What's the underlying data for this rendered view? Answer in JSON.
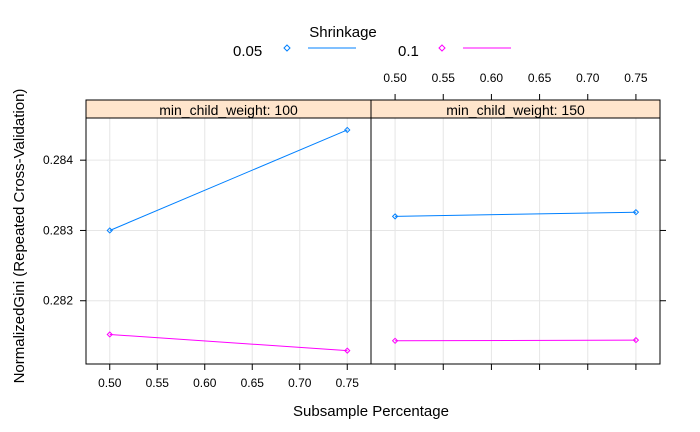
{
  "chart_data": {
    "type": "line",
    "xlabel": "Subsample Percentage",
    "ylabel": "NormalizedGini (Repeated Cross-Validation)",
    "xlim": [
      0.475,
      0.775
    ],
    "ylim": [
      281.1,
      284.6
    ],
    "xticks": [
      0.5,
      0.55,
      0.6,
      0.65,
      0.7,
      0.75
    ],
    "yticks": [
      282,
      283,
      284
    ],
    "ytick_labels": [
      "0.282",
      "0.283",
      "0.284"
    ],
    "value_scale_note": "y values stored x1000 (0.2830 -> 283.0)",
    "legend": {
      "title": "Shrinkage",
      "position": "top",
      "entries": [
        {
          "label": "0.05",
          "color": "#0080ff"
        },
        {
          "label": "0.1",
          "color": "#ff00ff"
        }
      ]
    },
    "panels": [
      {
        "strip": "min_child_weight: 100",
        "series": [
          {
            "name": "0.05",
            "color": "#0080ff",
            "x": [
              0.5,
              0.75
            ],
            "y": [
              283.0,
              284.43
            ]
          },
          {
            "name": "0.1",
            "color": "#ff00ff",
            "x": [
              0.5,
              0.75
            ],
            "y": [
              281.52,
              281.29
            ]
          }
        ]
      },
      {
        "strip": "min_child_weight: 150",
        "series": [
          {
            "name": "0.05",
            "color": "#0080ff",
            "x": [
              0.5,
              0.75
            ],
            "y": [
              283.2,
              283.26
            ]
          },
          {
            "name": "0.1",
            "color": "#ff00ff",
            "x": [
              0.5,
              0.75
            ],
            "y": [
              281.43,
              281.44
            ]
          }
        ]
      }
    ],
    "strip_color": "#ffe5cc",
    "grid_color": "#e6e6e6"
  }
}
